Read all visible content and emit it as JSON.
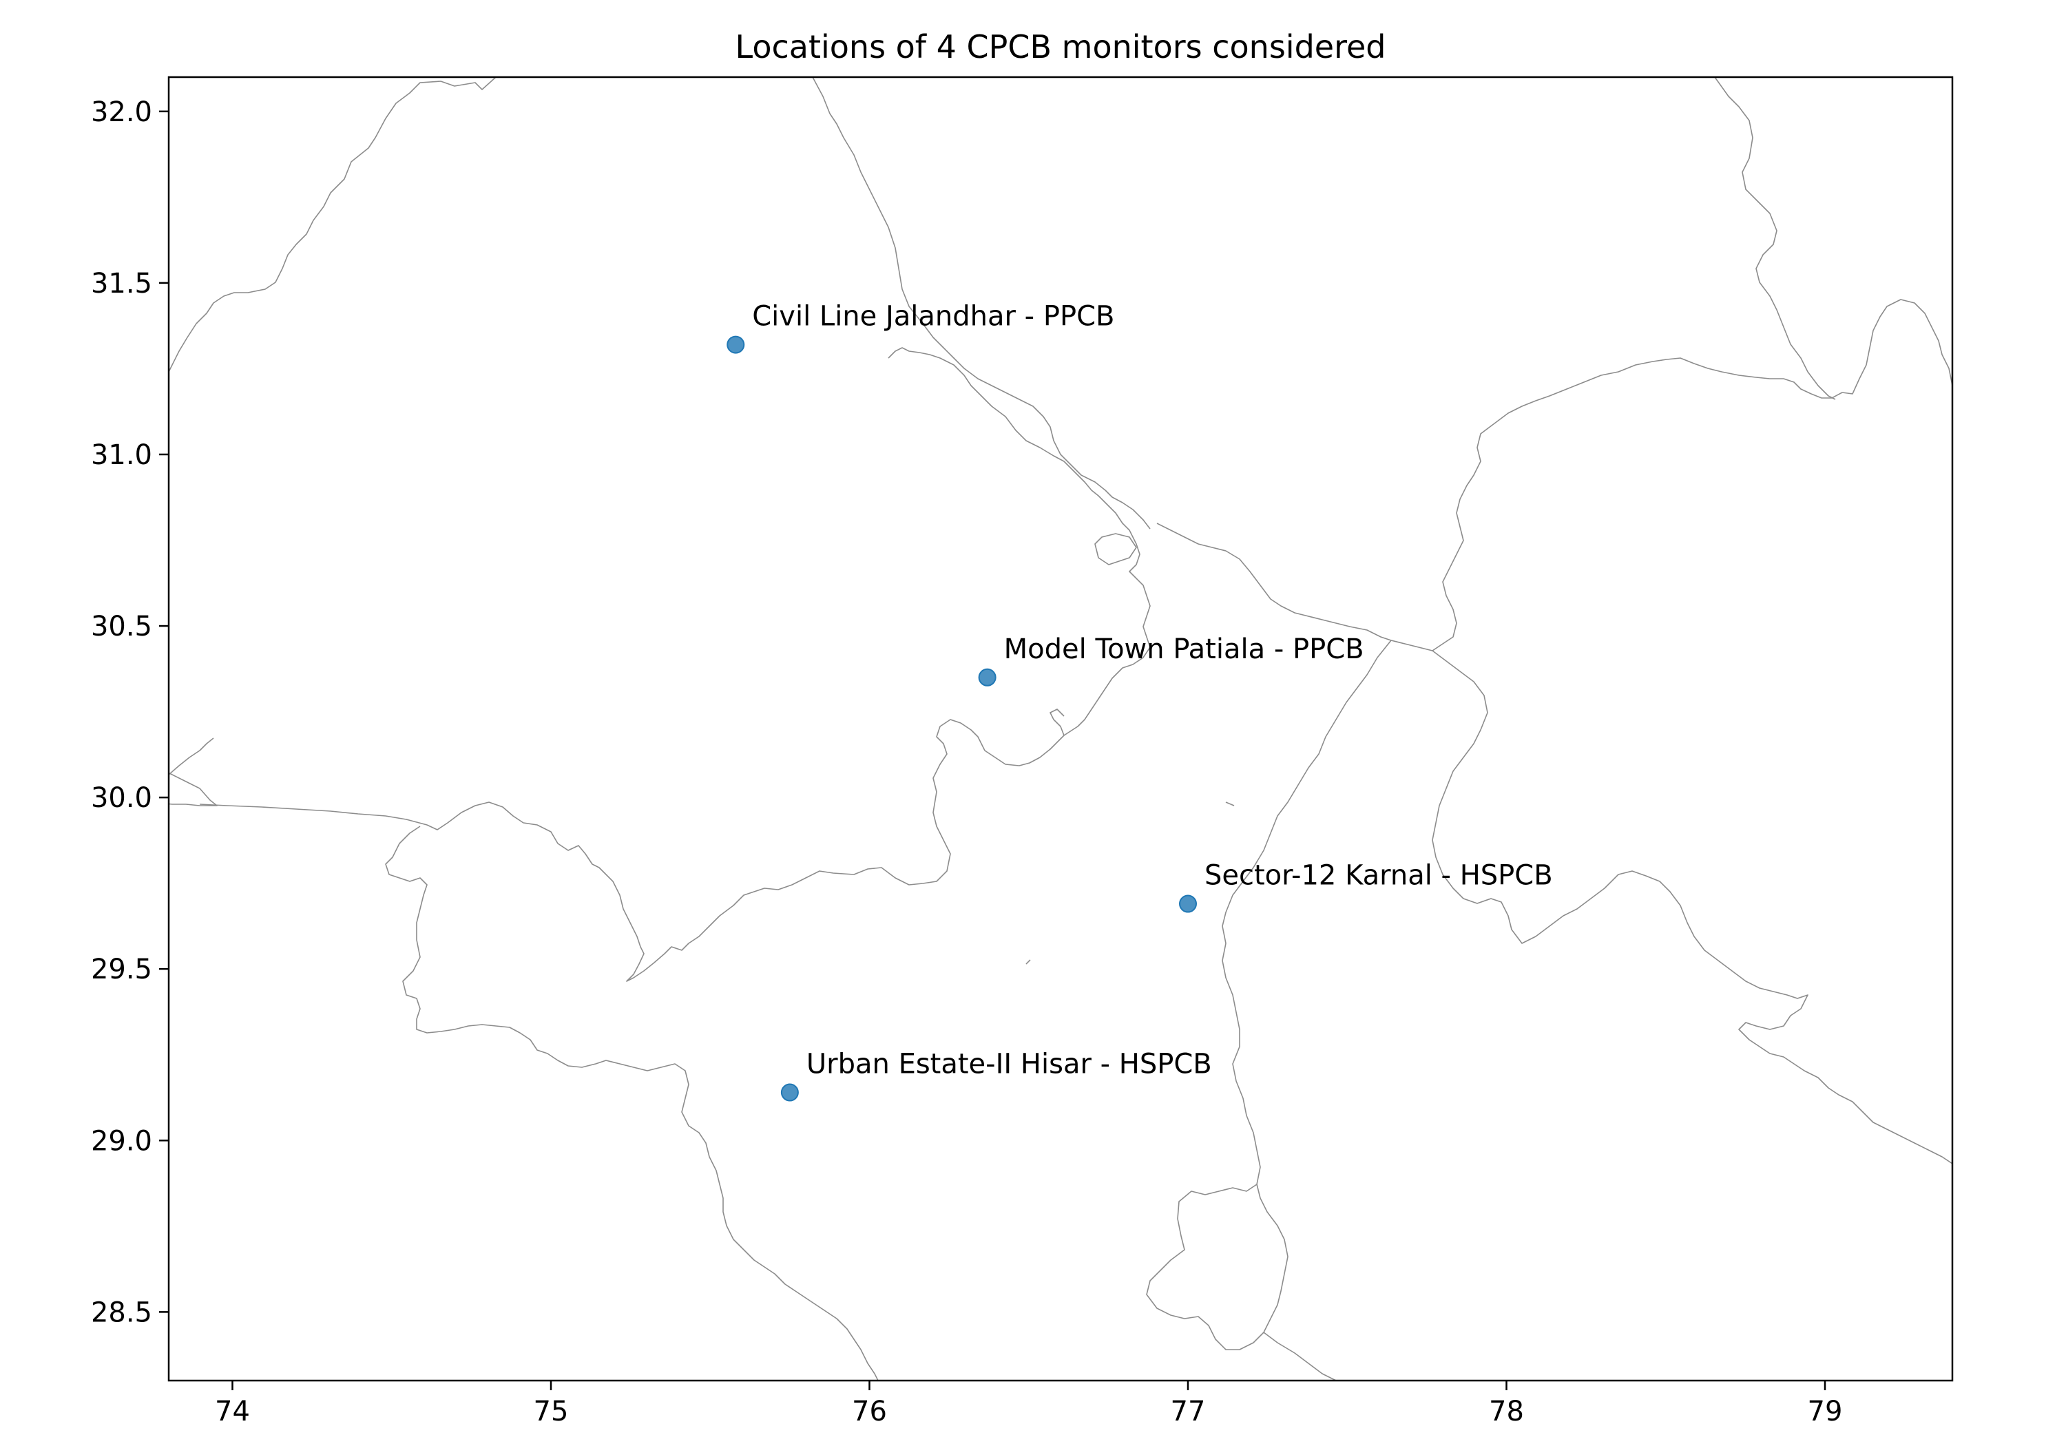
{
  "chart_data": {
    "type": "scatter",
    "title": "Locations of 4 CPCB monitors considered",
    "xlabel": "",
    "ylabel": "",
    "xlim": [
      73.8,
      79.4
    ],
    "ylim": [
      28.3,
      32.1
    ],
    "xticks": [
      74,
      75,
      76,
      77,
      78,
      79
    ],
    "yticks": [
      28.5,
      29.0,
      29.5,
      30.0,
      30.5,
      31.0,
      31.5,
      32.0
    ],
    "xtick_labels": [
      "74",
      "75",
      "76",
      "77",
      "78",
      "79"
    ],
    "ytick_labels": [
      "28.5",
      "29.0",
      "29.5",
      "30.0",
      "30.5",
      "31.0",
      "31.5",
      "32.0"
    ],
    "grid": false,
    "marker_color": "#1f77b4",
    "boundary_color": "#8c8c8c",
    "points": [
      {
        "x": 75.58,
        "y": 31.32,
        "label": "Civil Line  Jalandhar - PPCB"
      },
      {
        "x": 76.37,
        "y": 30.35,
        "label": "Model Town  Patiala - PPCB"
      },
      {
        "x": 77.0,
        "y": 29.69,
        "label": "Sector-12  Karnal - HSPCB"
      },
      {
        "x": 75.75,
        "y": 29.14,
        "label": "Urban Estate-II  Hisar - HSPCB"
      }
    ]
  }
}
